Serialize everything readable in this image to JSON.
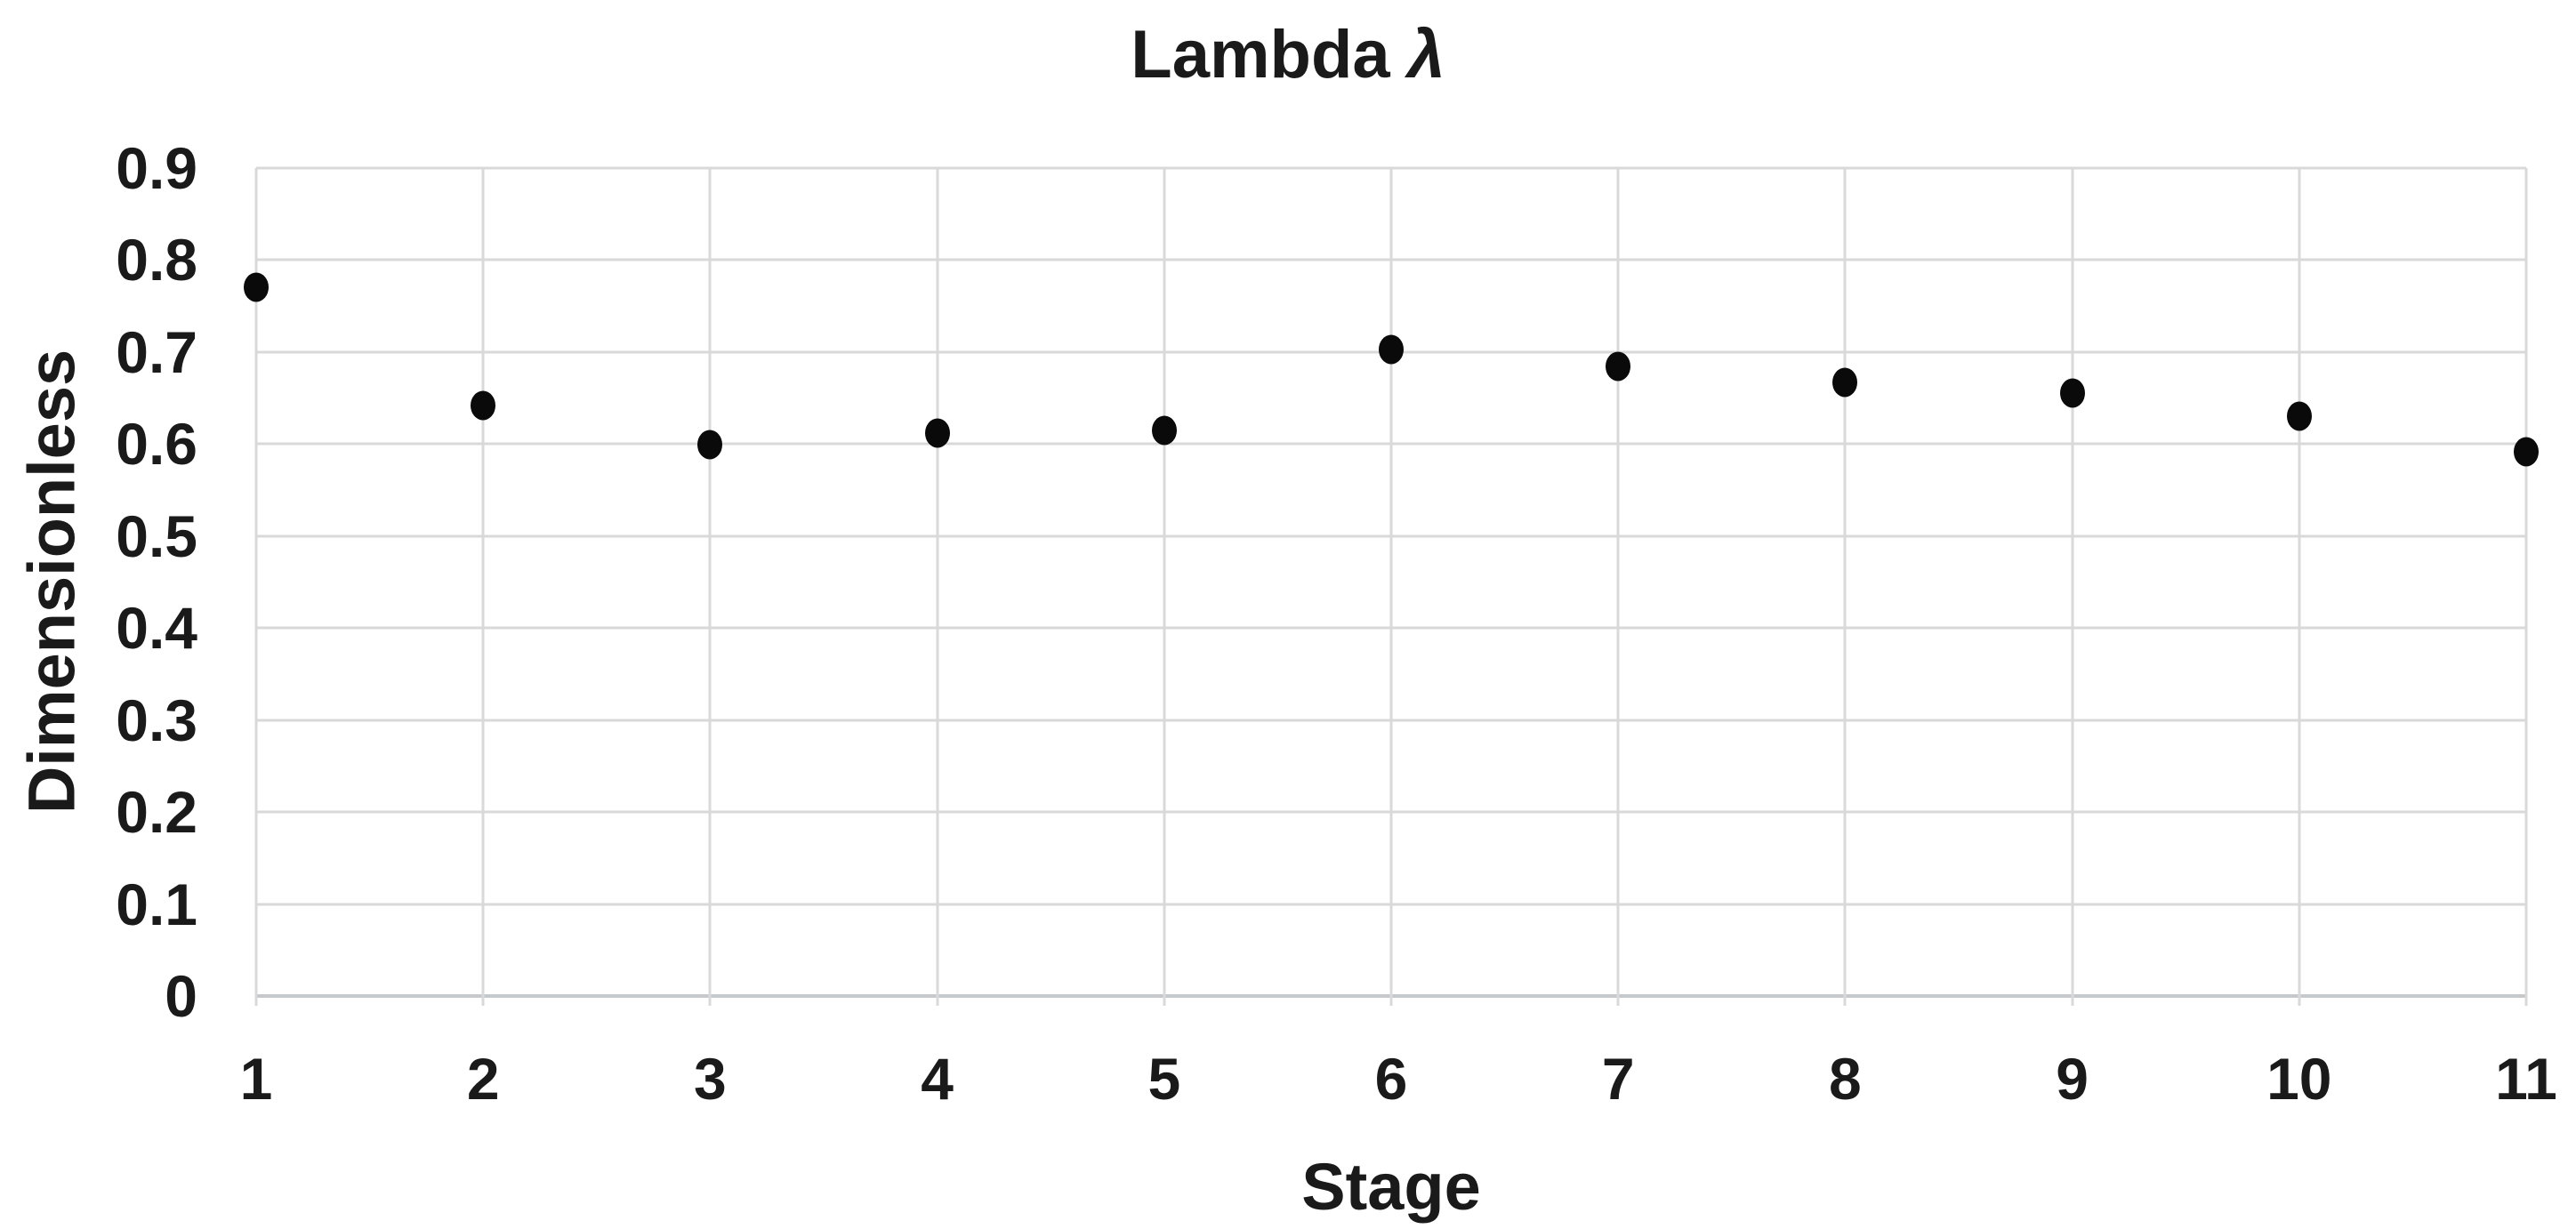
{
  "chart_data": {
    "type": "scatter",
    "title_text": "Lambda",
    "title_symbol": "λ",
    "xlabel": "Stage",
    "ylabel": "Dimensionless",
    "x": [
      1,
      2,
      3,
      4,
      5,
      6,
      7,
      8,
      9,
      10,
      11
    ],
    "values": [
      0.77,
      0.642,
      0.599,
      0.612,
      0.615,
      0.703,
      0.684,
      0.667,
      0.655,
      0.63,
      0.592
    ],
    "x_tick_labels": [
      "1",
      "2",
      "3",
      "4",
      "5",
      "6",
      "7",
      "8",
      "9",
      "10",
      "11"
    ],
    "y_tick_labels": [
      "0",
      "0.1",
      "0.2",
      "0.3",
      "0.4",
      "0.5",
      "0.6",
      "0.7",
      "0.8",
      "0.9"
    ],
    "y_tick_values": [
      0,
      0.1,
      0.2,
      0.3,
      0.4,
      0.5,
      0.6,
      0.7,
      0.8,
      0.9
    ],
    "xlim": [
      1,
      11
    ],
    "ylim": [
      0,
      0.9
    ],
    "grid": true,
    "legend": false,
    "marker_color": "#0a0a0a",
    "gridline_color": "#d9d9d9",
    "axis_line_color": "#c6c9cc"
  }
}
